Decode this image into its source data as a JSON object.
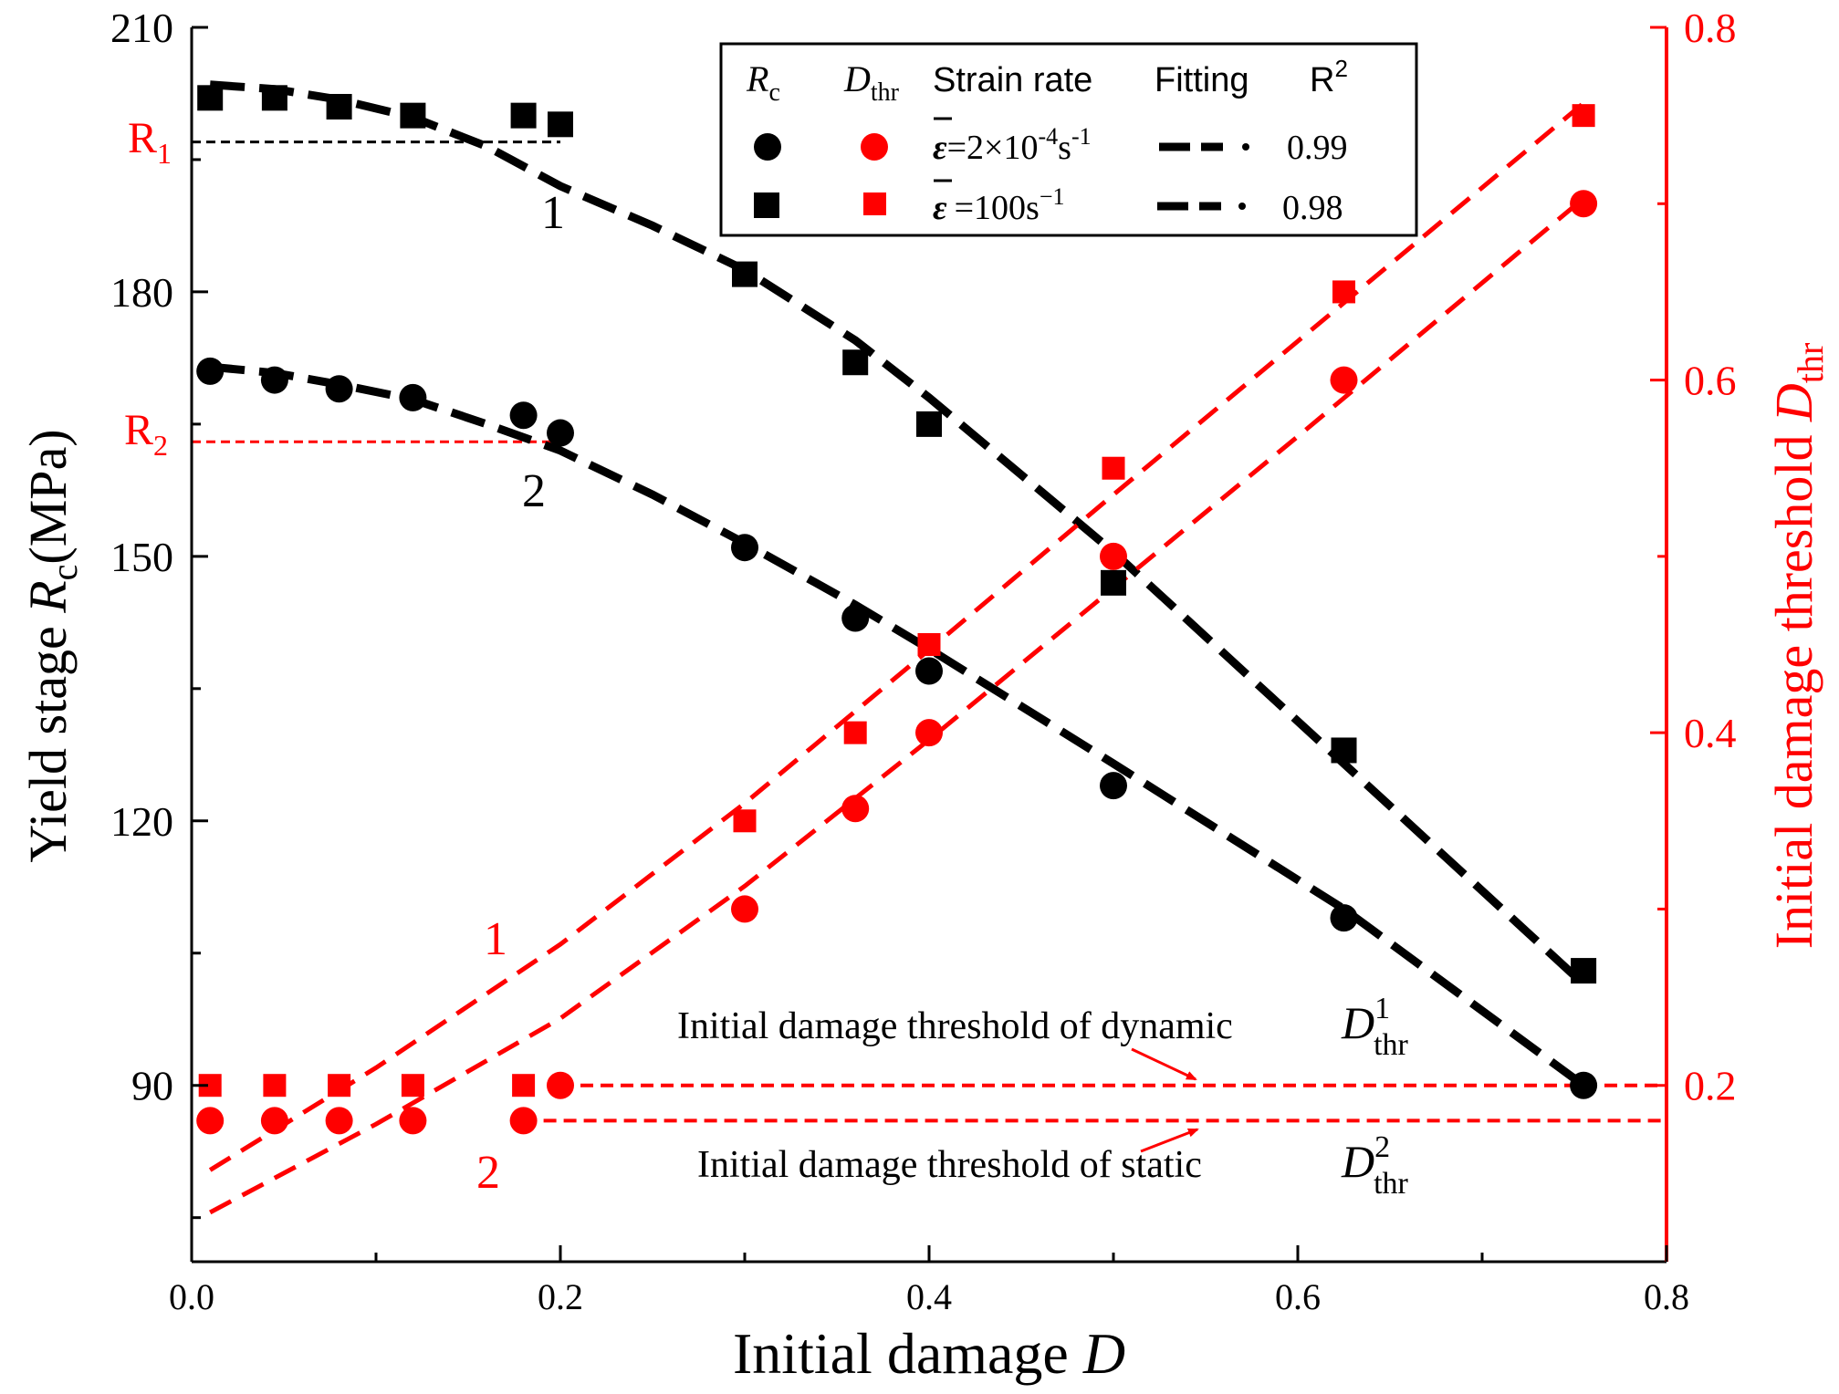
{
  "chart_data": {
    "type": "scatter",
    "x_axis": {
      "label_prefix": "Initial damage ",
      "label_var": "D",
      "range": [
        0.0,
        0.8
      ],
      "ticks": [
        "0.0",
        "0.2",
        "0.4",
        "0.6",
        "0.8"
      ]
    },
    "y_left": {
      "label_prefix": "Yield stage ",
      "label_var": "R",
      "label_sub": "c",
      "label_suffix": "(MPa)",
      "range": [
        70,
        210
      ],
      "ticks": [
        "90",
        "120",
        "150",
        "180",
        "210"
      ]
    },
    "y_right": {
      "label_prefix": "Initial damage threshold ",
      "label_var": "D",
      "label_sub": "thr",
      "range": [
        0.1,
        0.8
      ],
      "ticks": [
        "0.2",
        "0.4",
        "0.6",
        "0.8"
      ]
    },
    "series": [
      {
        "name": "Rc static",
        "axis": "left",
        "marker": "circle",
        "color": "#000000",
        "x": [
          0.01,
          0.045,
          0.08,
          0.12,
          0.18,
          0.2,
          0.3,
          0.36,
          0.4,
          0.5,
          0.625,
          0.755
        ],
        "y": [
          171,
          170,
          169,
          168,
          166,
          164,
          151,
          143,
          137,
          124,
          109,
          90
        ]
      },
      {
        "name": "Rc dynamic",
        "axis": "left",
        "marker": "square",
        "color": "#000000",
        "x": [
          0.01,
          0.045,
          0.08,
          0.12,
          0.18,
          0.2,
          0.3,
          0.36,
          0.4,
          0.5,
          0.625,
          0.755
        ],
        "y": [
          202,
          202,
          201,
          200,
          200,
          199,
          182,
          172,
          165,
          147,
          128,
          103
        ]
      },
      {
        "name": "Dthr static",
        "axis": "right",
        "marker": "circle",
        "color": "#ff0000",
        "x": [
          0.01,
          0.045,
          0.08,
          0.12,
          0.18,
          0.2,
          0.3,
          0.36,
          0.4,
          0.5,
          0.625,
          0.755
        ],
        "y": [
          0.18,
          0.18,
          0.18,
          0.18,
          0.18,
          0.2,
          0.3,
          0.357,
          0.4,
          0.5,
          0.6,
          0.7
        ]
      },
      {
        "name": "Dthr dynamic",
        "axis": "right",
        "marker": "square",
        "color": "#ff0000",
        "x": [
          0.01,
          0.045,
          0.08,
          0.12,
          0.18,
          0.3,
          0.36,
          0.4,
          0.5,
          0.625,
          0.755
        ],
        "y": [
          0.2,
          0.2,
          0.2,
          0.2,
          0.2,
          0.35,
          0.4,
          0.45,
          0.55,
          0.65,
          0.75
        ]
      }
    ],
    "fits": [
      {
        "axis": "left",
        "color": "#000000",
        "x": [
          0.01,
          0.045,
          0.08,
          0.12,
          0.16,
          0.2,
          0.25,
          0.3,
          0.36,
          0.4,
          0.5,
          0.625,
          0.755
        ],
        "y": [
          171.5,
          170.8,
          169.5,
          167.8,
          165.0,
          162.0,
          157.0,
          151.5,
          144.5,
          139.5,
          126.5,
          110.0,
          90.0
        ]
      },
      {
        "axis": "left",
        "color": "#000000",
        "x": [
          0.01,
          0.045,
          0.08,
          0.12,
          0.16,
          0.2,
          0.25,
          0.3,
          0.36,
          0.4,
          0.5,
          0.625,
          0.755
        ],
        "y": [
          203.5,
          203.0,
          201.8,
          199.8,
          196.5,
          192.0,
          187.5,
          182.5,
          174.5,
          168.0,
          150.5,
          126.5,
          101.5
        ]
      },
      {
        "axis": "right",
        "color": "#ff0000",
        "x": [
          0.01,
          0.1,
          0.2,
          0.3,
          0.4,
          0.5,
          0.6,
          0.755
        ],
        "y": [
          0.128,
          0.178,
          0.238,
          0.313,
          0.396,
          0.482,
          0.568,
          0.703
        ]
      },
      {
        "axis": "right",
        "color": "#ff0000",
        "x": [
          0.01,
          0.1,
          0.2,
          0.3,
          0.4,
          0.5,
          0.6,
          0.755
        ],
        "y": [
          0.152,
          0.21,
          0.28,
          0.36,
          0.447,
          0.535,
          0.622,
          0.757
        ]
      }
    ],
    "reference_lines": [
      {
        "axis": "left",
        "y": 197,
        "x_range": [
          0.0,
          0.2
        ],
        "label": "R",
        "sub": "1",
        "color": "#000000"
      },
      {
        "axis": "left",
        "y": 163,
        "x_range": [
          0.0,
          0.2
        ],
        "label": "R",
        "sub": "2",
        "color": "#ff0000"
      },
      {
        "axis": "right",
        "y": 0.2,
        "x_range": [
          0.2,
          0.8
        ],
        "color": "#ff0000"
      },
      {
        "axis": "right",
        "y": 0.18,
        "x_range": [
          0.18,
          0.8
        ],
        "color": "#ff0000"
      }
    ],
    "curve_labels": [
      {
        "text": "1",
        "color": "#000000"
      },
      {
        "text": "2",
        "color": "#000000"
      },
      {
        "text": "1",
        "color": "#ff0000"
      },
      {
        "text": "2",
        "color": "#ff0000"
      }
    ],
    "annotations": {
      "dynamic_text": "Initial damage threshold of dynamic",
      "static_text": "Initial damage threshold of static",
      "d_var": "D",
      "d_sub": "thr",
      "sup1": "1",
      "sup2": "2"
    },
    "legend": {
      "position": "top-center",
      "header_rc_var": "R",
      "header_rc_sub": "c",
      "header_dthr_var": "D",
      "header_dthr_sub": "thr",
      "header_strain": "Strain rate",
      "header_fitting": "Fitting",
      "header_r2": "R",
      "header_r2_sup": "2",
      "row1_rate_prefix": "=2×10",
      "row1_rate_exp1": "-4",
      "row1_rate_unit": "s",
      "row1_rate_exp2": "-1",
      "row1_r2": "0.99",
      "row2_rate_prefix": "=100s",
      "row2_rate_exp": "−1",
      "row2_r2": "0.98",
      "eps_symbol": "ε"
    }
  }
}
